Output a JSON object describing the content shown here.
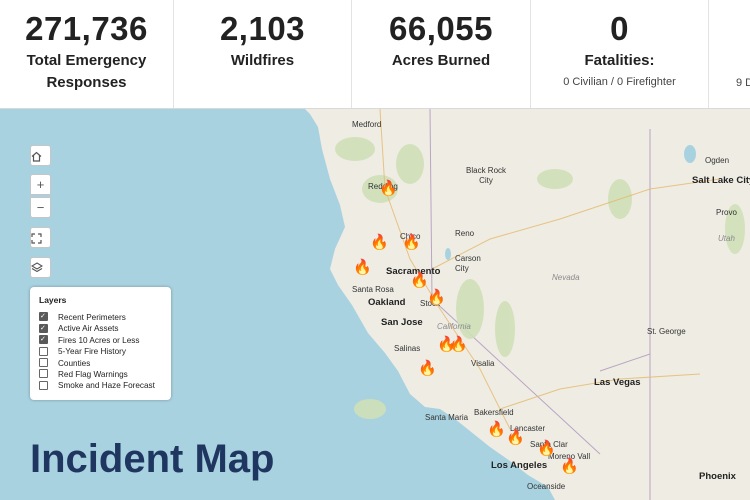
{
  "stats": [
    {
      "value": "271,736",
      "label": "Total Emergency Responses",
      "sub": ""
    },
    {
      "value": "2,103",
      "label": "Wildfires",
      "sub": ""
    },
    {
      "value": "66,055",
      "label": "Acres Burned",
      "sub": ""
    },
    {
      "value": "0",
      "label": "Fatalities:",
      "sub": "0 Civilian / 0 Firefighter"
    },
    {
      "value": "",
      "label": "",
      "sub": "9 D"
    }
  ],
  "map": {
    "controls": [
      "home-icon",
      "zoom-in-icon",
      "zoom-out-icon",
      "fullscreen-icon",
      "layers-icon"
    ],
    "cities": {
      "medford": "Medford",
      "redding": "Redding",
      "chico": "Chico",
      "black_rock_city": "Black Rock City",
      "reno": "Reno",
      "carson_city": "Carson City",
      "sacramento": "Sacramento",
      "santa_rosa": "Santa Rosa",
      "oakland": "Oakland",
      "stockton": "Stock",
      "san_jose": "San Jose",
      "california": "California",
      "nevada": "Nevada",
      "salinas": "Salinas",
      "visalia": "Visalia",
      "bakersfield": "Bakersfield",
      "santa_maria": "Santa Maria",
      "lancaster": "Lancaster",
      "santa_clarita": "Santa Clar",
      "los_angeles": "Los Angeles",
      "moreno_valley": "Moreno Vall",
      "oceanside": "Oceanside",
      "las_vegas": "Las Vegas",
      "st_george": "St. George",
      "salt_lake_city": "Salt Lake City",
      "ogden": "Ogden",
      "provo": "Provo",
      "utah": "Utah",
      "phoenix": "Phoenix"
    },
    "fire_icon": "🔥"
  },
  "layers_panel": {
    "title": "Layers",
    "items": [
      {
        "label": "Recent Perimeters",
        "checked": true
      },
      {
        "label": "Active Air Assets",
        "checked": true
      },
      {
        "label": "Fires 10 Acres or Less",
        "checked": true
      },
      {
        "label": "5-Year Fire History",
        "checked": false
      },
      {
        "label": "Counties",
        "checked": false
      },
      {
        "label": "Red Flag Warnings",
        "checked": false
      },
      {
        "label": "Smoke and Haze Forecast",
        "checked": false
      }
    ]
  },
  "page_title": "Incident Map",
  "colors": {
    "ocean": "#a9d2e0",
    "land": "#efece4",
    "title": "#1f3760"
  }
}
